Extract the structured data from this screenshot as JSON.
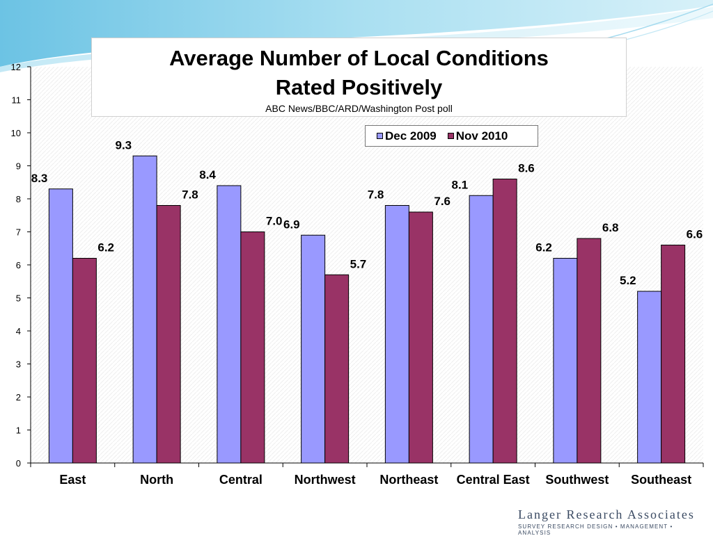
{
  "chart_data": {
    "type": "bar",
    "title": "Average Number of Local Conditions Rated Positively",
    "title_lines": [
      "Average Number of Local Conditions",
      "Rated Positively"
    ],
    "subtitle": "ABC News/BBC/ARD/Washington Post poll",
    "categories": [
      "East",
      "North",
      "Central",
      "Northwest",
      "Northeast",
      "Central East",
      "Southwest",
      "Southeast"
    ],
    "series": [
      {
        "name": "Dec 2009",
        "color": "#9999ff",
        "values": [
          8.3,
          9.3,
          8.4,
          6.9,
          7.8,
          8.1,
          6.2,
          5.2
        ],
        "labels": [
          "8.3",
          "9.3",
          "8.4",
          "6.9",
          "7.8",
          "8.1",
          "6.2",
          "5.2"
        ]
      },
      {
        "name": "Nov 2010",
        "color": "#993366",
        "values": [
          6.2,
          7.8,
          7.0,
          5.7,
          7.6,
          8.6,
          6.8,
          6.6
        ],
        "labels": [
          "6.2",
          "7.8",
          "7.0",
          "5.7",
          "7.6",
          "8.6",
          "6.8",
          "6.6"
        ]
      }
    ],
    "ylim": [
      0,
      12
    ],
    "yticks": [
      "0",
      "1",
      "2",
      "3",
      "4",
      "5",
      "6",
      "7",
      "8",
      "9",
      "10",
      "11",
      "12"
    ],
    "xlabel": "",
    "ylabel": "",
    "grid": false,
    "legend_position": "top-right"
  },
  "logo": {
    "name": "Langer Research Associates",
    "tagline": "SURVEY RESEARCH DESIGN • MANAGEMENT • ANALYSIS"
  },
  "colors": {
    "axis": "#000000",
    "plot_background": "#ffffff",
    "dec_2009": "#9999ff",
    "nov_2010": "#993366",
    "header_wave": "#8fd0e8"
  }
}
